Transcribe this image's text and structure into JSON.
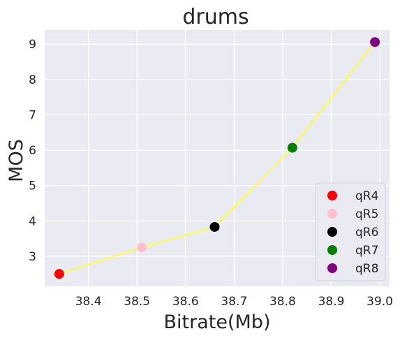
{
  "chart_data": {
    "type": "scatter",
    "title": "drums",
    "xlabel": "Bitrate(Mb)",
    "ylabel": "MOS",
    "xlim": [
      38.31,
      39.02
    ],
    "ylim": [
      2.15,
      9.4
    ],
    "xticks": [
      "38.4",
      "38.5",
      "38.6",
      "38.7",
      "38.8",
      "38.9",
      "39.0"
    ],
    "yticks": [
      "3",
      "4",
      "5",
      "6",
      "7",
      "8",
      "9"
    ],
    "grid": true,
    "legend_position": "lower-right",
    "line_color": "#ffff33",
    "line": {
      "x": [
        38.34,
        38.51,
        38.66,
        38.82,
        38.99
      ],
      "y": [
        2.5,
        3.25,
        3.83,
        6.07,
        9.06
      ]
    },
    "series": [
      {
        "name": "qR4",
        "color": "#ff0000",
        "x": 38.34,
        "y": 2.5
      },
      {
        "name": "qR5",
        "color": "#ffc0cb",
        "x": 38.51,
        "y": 3.25
      },
      {
        "name": "qR6",
        "color": "#000000",
        "x": 38.66,
        "y": 3.83
      },
      {
        "name": "qR7",
        "color": "#008000",
        "x": 38.82,
        "y": 6.07
      },
      {
        "name": "qR8",
        "color": "#800080",
        "x": 38.99,
        "y": 9.06
      }
    ]
  }
}
